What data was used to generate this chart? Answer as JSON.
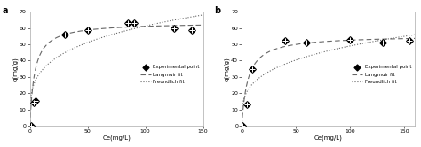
{
  "panel_a": {
    "label": "a",
    "exp_x": [
      1,
      3,
      5,
      30,
      50,
      85,
      90,
      125,
      140
    ],
    "exp_y": [
      0,
      14,
      15,
      56,
      59,
      63,
      63,
      60,
      59
    ],
    "langmuir_qm": 63.5,
    "langmuir_KL": 0.25,
    "freundlich_Kf": 18.5,
    "freundlich_n": 0.26,
    "xlabel": "Ce(mg/L)",
    "ylabel": "q(mg/g)",
    "xlim": [
      0,
      150
    ],
    "ylim": [
      0,
      70
    ],
    "xticks": [
      0,
      50,
      100,
      150
    ],
    "yticks": [
      0,
      10,
      20,
      30,
      40,
      50,
      60,
      70
    ]
  },
  "panel_b": {
    "label": "b",
    "exp_x": [
      1,
      5,
      10,
      40,
      60,
      100,
      130,
      155
    ],
    "exp_y": [
      0,
      13,
      35,
      52,
      51,
      53,
      51,
      52
    ],
    "langmuir_qm": 55.5,
    "langmuir_KL": 0.18,
    "freundlich_Kf": 13.5,
    "freundlich_n": 0.28,
    "xlabel": "Ce(mg/L)",
    "ylabel": "q(mg/g)",
    "xlim": [
      0,
      160
    ],
    "ylim": [
      0,
      70
    ],
    "xticks": [
      0,
      50,
      100,
      150
    ],
    "yticks": [
      0,
      10,
      20,
      30,
      40,
      50,
      60,
      70
    ]
  },
  "legend_labels": [
    "Experimental point",
    "Langmuir fit",
    "Freundlich fit"
  ],
  "line_color": "#666666",
  "marker_color": "#000000",
  "background_color": "#ffffff"
}
